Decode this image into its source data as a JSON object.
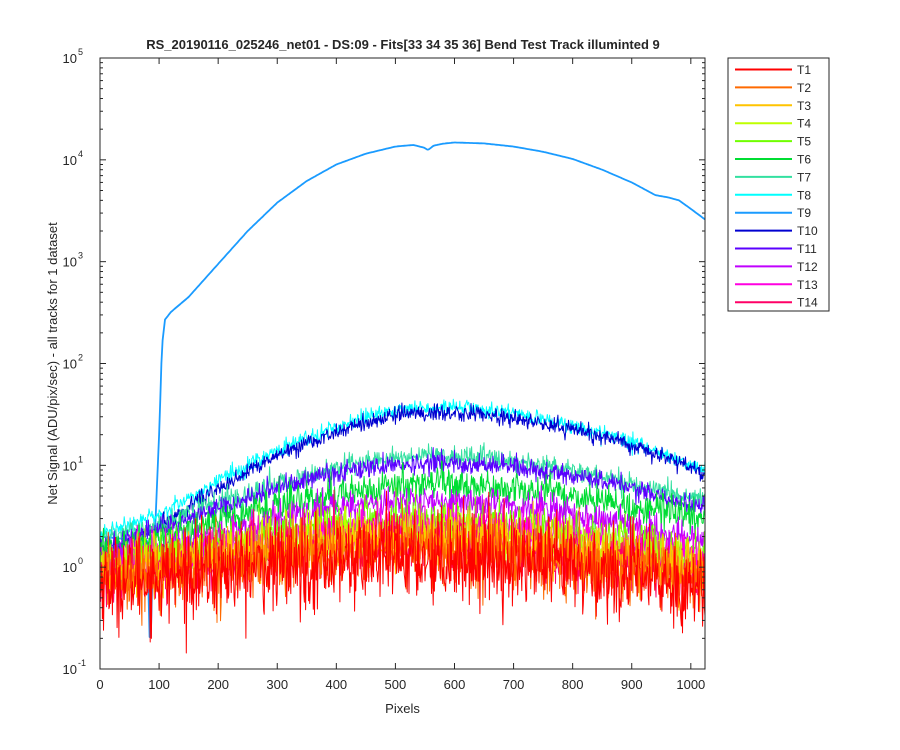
{
  "chart_data": {
    "type": "line",
    "title": "RS_20190116_025246_net01 - DS:09 - Fits[33  34  35  36]    Bend Test       Track illuminted 9",
    "xlabel": "Pixels",
    "ylabel": "Net Signal (ADU/pix/sec) - all tracks for 1 dataset",
    "xlim": [
      0,
      1024
    ],
    "ylim": [
      0.1,
      100000
    ],
    "yscale": "log",
    "x_ticks": [
      "0",
      "100",
      "200",
      "300",
      "400",
      "500",
      "600",
      "700",
      "800",
      "900",
      "1000"
    ],
    "x_tick_values": [
      0,
      100,
      200,
      300,
      400,
      500,
      600,
      700,
      800,
      900,
      1000
    ],
    "y_ticks": [
      {
        "base": "10",
        "exp": "-1",
        "value": 0.1
      },
      {
        "base": "10",
        "exp": "0",
        "value": 1
      },
      {
        "base": "10",
        "exp": "1",
        "value": 10
      },
      {
        "base": "10",
        "exp": "2",
        "value": 100
      },
      {
        "base": "10",
        "exp": "3",
        "value": 1000
      },
      {
        "base": "10",
        "exp": "4",
        "value": 10000
      },
      {
        "base": "10",
        "exp": "5",
        "value": 100000
      }
    ],
    "legend_position": "outside-top-right",
    "series": [
      {
        "name": "T1",
        "color": "#ff0000",
        "x": [
          0,
          100,
          200,
          300,
          400,
          500,
          600,
          700,
          800,
          900,
          1024
        ],
        "y": [
          0.7,
          0.8,
          0.9,
          1.0,
          1.15,
          1.25,
          1.25,
          1.15,
          0.95,
          0.8,
          0.6
        ],
        "noise": 0.22
      },
      {
        "name": "T2",
        "color": "#ff6a00",
        "x": [
          0,
          100,
          200,
          300,
          400,
          500,
          600,
          700,
          800,
          900,
          1024
        ],
        "y": [
          0.8,
          0.9,
          1.05,
          1.2,
          1.35,
          1.45,
          1.45,
          1.35,
          1.15,
          0.95,
          0.7
        ],
        "noise": 0.17
      },
      {
        "name": "T3",
        "color": "#ffc400",
        "x": [
          0,
          100,
          200,
          300,
          400,
          500,
          600,
          700,
          800,
          900,
          1024
        ],
        "y": [
          0.9,
          1.0,
          1.2,
          1.45,
          1.65,
          1.8,
          1.8,
          1.65,
          1.4,
          1.15,
          0.85
        ],
        "noise": 0.14
      },
      {
        "name": "T4",
        "color": "#bfff00",
        "x": [
          0,
          100,
          200,
          300,
          400,
          500,
          600,
          700,
          800,
          900,
          1024
        ],
        "y": [
          1.0,
          1.15,
          1.4,
          1.75,
          2.0,
          2.2,
          2.2,
          2.0,
          1.7,
          1.4,
          1.0
        ],
        "noise": 0.12
      },
      {
        "name": "T5",
        "color": "#70ff00",
        "x": [
          0,
          100,
          200,
          300,
          400,
          500,
          600,
          700,
          800,
          900,
          1024
        ],
        "y": [
          1.1,
          1.3,
          1.7,
          2.2,
          2.6,
          2.9,
          2.9,
          2.6,
          2.2,
          1.8,
          1.3
        ],
        "noise": 0.1
      },
      {
        "name": "T6",
        "color": "#00dd33",
        "x": [
          0,
          100,
          200,
          300,
          400,
          500,
          600,
          700,
          800,
          900,
          1024
        ],
        "y": [
          1.5,
          1.9,
          2.8,
          4.0,
          5.3,
          6.5,
          6.6,
          6.0,
          5.0,
          4.0,
          3.0
        ],
        "noise": 0.08
      },
      {
        "name": "T7",
        "color": "#33e0a0",
        "x": [
          0,
          100,
          200,
          300,
          400,
          500,
          600,
          700,
          800,
          900,
          1024
        ],
        "y": [
          1.9,
          2.6,
          4.2,
          6.5,
          9.5,
          12.2,
          12.5,
          11.2,
          9.0,
          6.5,
          4.5
        ],
        "noise": 0.05
      },
      {
        "name": "T8",
        "color": "#00ffff",
        "x": [
          0,
          100,
          200,
          300,
          400,
          500,
          600,
          700,
          800,
          900,
          1024
        ],
        "y": [
          2.1,
          3.3,
          7.0,
          14.0,
          24.0,
          35.0,
          37.0,
          33.0,
          25.0,
          17.0,
          9.0
        ],
        "noise": 0.04
      },
      {
        "name": "T9",
        "color": "#1a9bff",
        "x": [
          0,
          80,
          85,
          88,
          92,
          100,
          105,
          110,
          120,
          150,
          200,
          250,
          300,
          350,
          400,
          450,
          500,
          530,
          548,
          555,
          565,
          580,
          600,
          650,
          700,
          750,
          800,
          850,
          900,
          920,
          940,
          960,
          980,
          1000,
          1024
        ],
        "y": [
          2.0,
          1.8,
          0.12,
          0.6,
          1.5,
          20,
          150,
          270,
          320,
          450,
          950,
          2000,
          3800,
          6200,
          9000,
          11500,
          13500,
          14000,
          13200,
          12500,
          13800,
          14400,
          14800,
          14500,
          13500,
          12000,
          10200,
          8000,
          6000,
          5200,
          4500,
          4300,
          4000,
          3300,
          2600
        ],
        "noise": 0.0
      },
      {
        "name": "T10",
        "color": "#0000d0",
        "x": [
          0,
          100,
          200,
          300,
          400,
          500,
          600,
          700,
          800,
          900,
          1024
        ],
        "y": [
          1.3,
          2.5,
          6.0,
          12.5,
          21.0,
          31.0,
          33.0,
          29.0,
          23.0,
          16.0,
          8.5
        ],
        "noise": 0.04
      },
      {
        "name": "T11",
        "color": "#5a00ff",
        "x": [
          0,
          100,
          200,
          300,
          400,
          500,
          600,
          700,
          800,
          900,
          1024
        ],
        "y": [
          1.6,
          2.3,
          3.8,
          6.0,
          8.5,
          10.2,
          10.6,
          9.6,
          8.0,
          6.0,
          3.8
        ],
        "noise": 0.05
      },
      {
        "name": "T12",
        "color": "#c000ff",
        "x": [
          0,
          100,
          200,
          300,
          400,
          500,
          600,
          700,
          800,
          900,
          1024
        ],
        "y": [
          1.2,
          1.5,
          2.1,
          3.0,
          3.8,
          4.5,
          4.5,
          4.1,
          3.3,
          2.5,
          1.8
        ],
        "noise": 0.08
      },
      {
        "name": "T13",
        "color": "#ff00e0",
        "x": [
          0,
          100,
          200,
          300,
          400,
          500,
          600,
          700,
          800,
          900,
          1024
        ],
        "y": [
          1.0,
          1.2,
          1.5,
          1.9,
          2.3,
          2.6,
          2.6,
          2.4,
          2.0,
          1.6,
          1.2
        ],
        "noise": 0.11
      },
      {
        "name": "T14",
        "color": "#ff0066",
        "x": [
          0,
          100,
          200,
          300,
          400,
          500,
          600,
          700,
          800,
          900,
          1024
        ],
        "y": [
          0.8,
          1.0,
          1.2,
          1.45,
          1.65,
          1.8,
          1.8,
          1.65,
          1.4,
          1.1,
          0.85
        ],
        "noise": 0.14
      }
    ]
  }
}
